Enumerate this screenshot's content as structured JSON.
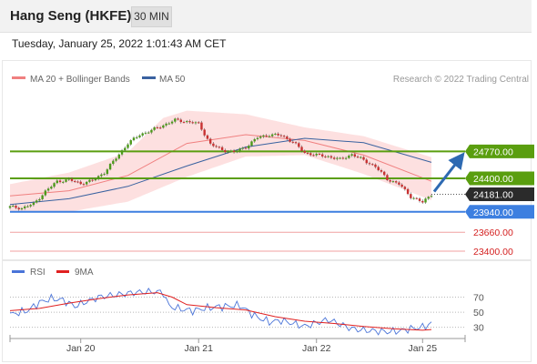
{
  "header": {
    "title": "Hang Seng (HKFE)",
    "timeframe": "30 MIN"
  },
  "datetime": "Tuesday, January 25, 2022 1:01:43 AM CET",
  "legend": {
    "bollinger": "MA 20 + Bollinger Bands",
    "ma50": "MA 50",
    "credit": "Research © 2022 Trading Central"
  },
  "rsi_legend": {
    "rsi": "RSI",
    "ma9": "9MA"
  },
  "colors": {
    "resistance": "#5a9e0f",
    "support": "#3d7fe0",
    "current": "#2b2b2b",
    "target_line": "#f0a0a0",
    "target_text": "#d42020",
    "candle_up": "#4c9a1a",
    "candle_down": "#c83232",
    "band_fill": "#fde0e0",
    "ma20": "#f08080",
    "ma50": "#3a62a0",
    "rsi": "#4a74d8",
    "rsi_ma": "#e02020",
    "arrow": "#2e6ab2"
  },
  "chart_data": [
    {
      "type": "candlestick",
      "x_dates": [
        "Jan 20",
        "Jan 21",
        "Jan 22",
        "Jan 25"
      ],
      "price_levels": [
        {
          "value": "24770.00",
          "kind": "resistance"
        },
        {
          "value": "24400.00",
          "kind": "resistance"
        },
        {
          "value": "24181.00",
          "kind": "current"
        },
        {
          "value": "23940.00",
          "kind": "support"
        },
        {
          "value": "23660.00",
          "kind": "target"
        },
        {
          "value": "23400.00",
          "kind": "target"
        }
      ],
      "ylim": [
        23300,
        25550
      ],
      "price_path": [
        [
          0,
          24010
        ],
        [
          4,
          23990
        ],
        [
          8,
          24050
        ],
        [
          12,
          24220
        ],
        [
          16,
          24360
        ],
        [
          20,
          24380
        ],
        [
          24,
          24330
        ],
        [
          28,
          24370
        ],
        [
          32,
          24480
        ],
        [
          36,
          24680
        ],
        [
          40,
          24880
        ],
        [
          44,
          25000
        ],
        [
          48,
          25060
        ],
        [
          52,
          25130
        ],
        [
          56,
          25200
        ],
        [
          60,
          25180
        ],
        [
          64,
          25150
        ],
        [
          68,
          24870
        ],
        [
          72,
          24790
        ],
        [
          76,
          24760
        ],
        [
          80,
          24830
        ],
        [
          84,
          24960
        ],
        [
          88,
          25000
        ],
        [
          92,
          24990
        ],
        [
          96,
          24900
        ],
        [
          100,
          24750
        ],
        [
          104,
          24720
        ],
        [
          108,
          24700
        ],
        [
          112,
          24660
        ],
        [
          116,
          24730
        ],
        [
          120,
          24650
        ],
        [
          124,
          24560
        ],
        [
          128,
          24390
        ],
        [
          132,
          24320
        ],
        [
          136,
          24150
        ],
        [
          140,
          24070
        ],
        [
          143,
          24181
        ]
      ],
      "ma20_path": [
        [
          0,
          24160
        ],
        [
          20,
          24230
        ],
        [
          40,
          24440
        ],
        [
          60,
          24880
        ],
        [
          80,
          25000
        ],
        [
          100,
          24920
        ],
        [
          120,
          24720
        ],
        [
          143,
          24360
        ]
      ],
      "ma50_path": [
        [
          0,
          24040
        ],
        [
          20,
          24120
        ],
        [
          40,
          24290
        ],
        [
          60,
          24570
        ],
        [
          80,
          24830
        ],
        [
          100,
          24950
        ],
        [
          120,
          24890
        ],
        [
          143,
          24620
        ]
      ],
      "band_upper": [
        [
          0,
          24320
        ],
        [
          20,
          24480
        ],
        [
          40,
          24760
        ],
        [
          52,
          25230
        ],
        [
          60,
          25330
        ],
        [
          80,
          25280
        ],
        [
          100,
          25100
        ],
        [
          120,
          24980
        ],
        [
          143,
          24690
        ]
      ],
      "band_lower": [
        [
          0,
          23950
        ],
        [
          20,
          23940
        ],
        [
          40,
          24080
        ],
        [
          60,
          24420
        ],
        [
          80,
          24700
        ],
        [
          100,
          24720
        ],
        [
          120,
          24460
        ],
        [
          143,
          24100
        ]
      ],
      "forecast": {
        "from": "24181.00",
        "to": "24770.00"
      }
    },
    {
      "type": "line",
      "title": "RSI",
      "ylim": [
        15,
        90
      ],
      "levels": [
        "70",
        "50",
        "30"
      ],
      "rsi_path": [
        [
          0,
          47
        ],
        [
          6,
          52
        ],
        [
          10,
          63
        ],
        [
          14,
          68
        ],
        [
          18,
          66
        ],
        [
          22,
          58
        ],
        [
          26,
          64
        ],
        [
          30,
          70
        ],
        [
          34,
          72
        ],
        [
          38,
          74
        ],
        [
          42,
          76
        ],
        [
          46,
          77
        ],
        [
          50,
          77
        ],
        [
          52,
          76
        ],
        [
          54,
          58
        ],
        [
          58,
          54
        ],
        [
          62,
          52
        ],
        [
          66,
          55
        ],
        [
          70,
          57
        ],
        [
          74,
          58
        ],
        [
          78,
          59
        ],
        [
          82,
          48
        ],
        [
          84,
          43
        ],
        [
          88,
          37
        ],
        [
          92,
          39
        ],
        [
          96,
          35
        ],
        [
          100,
          31
        ],
        [
          104,
          36
        ],
        [
          108,
          40
        ],
        [
          112,
          34
        ],
        [
          116,
          28
        ],
        [
          120,
          26
        ],
        [
          124,
          25
        ],
        [
          128,
          24
        ],
        [
          132,
          25
        ],
        [
          136,
          28
        ],
        [
          140,
          30
        ],
        [
          143,
          35
        ]
      ],
      "ma_path": [
        [
          0,
          52
        ],
        [
          10,
          55
        ],
        [
          20,
          62
        ],
        [
          30,
          68
        ],
        [
          40,
          73
        ],
        [
          50,
          76
        ],
        [
          55,
          70
        ],
        [
          60,
          60
        ],
        [
          70,
          56
        ],
        [
          80,
          53
        ],
        [
          90,
          44
        ],
        [
          100,
          38
        ],
        [
          110,
          35
        ],
        [
          120,
          31
        ],
        [
          130,
          28
        ],
        [
          140,
          26
        ],
        [
          143,
          27
        ]
      ]
    }
  ]
}
